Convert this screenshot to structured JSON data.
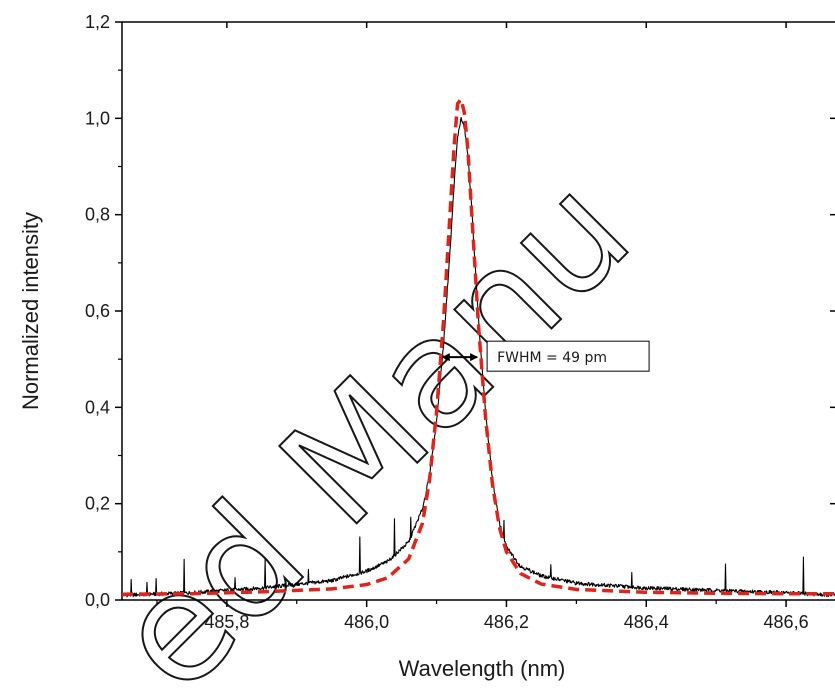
{
  "chart_data": {
    "type": "line",
    "title": "",
    "xlabel": "Wavelength (nm)",
    "ylabel": "Normalized intensity",
    "xlim": [
      485.65,
      486.67
    ],
    "ylim": [
      0.0,
      1.2
    ],
    "x_ticks": [
      485.8,
      486.0,
      486.2,
      486.4,
      486.6
    ],
    "x_tick_labels": [
      "485,8",
      "486,0",
      "486,2",
      "486,4",
      "486,6"
    ],
    "y_ticks": [
      0.0,
      0.2,
      0.4,
      0.6,
      0.8,
      1.0,
      1.2
    ],
    "y_tick_labels": [
      "0,0",
      "0,2",
      "0,4",
      "0,6",
      "0,8",
      "1,0",
      "1,2"
    ],
    "grid": false,
    "series": [
      {
        "style": "solid",
        "color": "#000000",
        "peak_center": 486.133,
        "peak_height": 1.0,
        "x": [
          485.65,
          485.75,
          485.85,
          485.95,
          486.0,
          486.03,
          486.06,
          486.08,
          486.09,
          486.1,
          486.11,
          486.12,
          486.125,
          486.13,
          486.135,
          486.14,
          486.145,
          486.15,
          486.16,
          486.17,
          486.18,
          486.19,
          486.2,
          486.22,
          486.25,
          486.3,
          486.4,
          486.5,
          486.6,
          486.67
        ],
        "y": [
          0.01,
          0.015,
          0.025,
          0.04,
          0.06,
          0.08,
          0.12,
          0.19,
          0.26,
          0.37,
          0.53,
          0.74,
          0.86,
          0.96,
          1.0,
          0.98,
          0.92,
          0.82,
          0.58,
          0.39,
          0.25,
          0.16,
          0.11,
          0.07,
          0.05,
          0.035,
          0.025,
          0.02,
          0.015,
          0.01
        ]
      },
      {
        "style": "dashed",
        "color": "#e0241b",
        "peak_center": 486.133,
        "peak_height": 1.04,
        "x": [
          485.65,
          485.75,
          485.85,
          485.95,
          486.0,
          486.03,
          486.06,
          486.08,
          486.09,
          486.1,
          486.11,
          486.12,
          486.125,
          486.13,
          486.135,
          486.14,
          486.145,
          486.15,
          486.16,
          486.17,
          486.18,
          486.19,
          486.2,
          486.22,
          486.25,
          486.3,
          486.4,
          486.5,
          486.6,
          486.67
        ],
        "y": [
          0.012,
          0.013,
          0.017,
          0.023,
          0.032,
          0.046,
          0.085,
          0.16,
          0.25,
          0.39,
          0.58,
          0.82,
          0.94,
          1.03,
          1.04,
          1.01,
          0.93,
          0.81,
          0.57,
          0.38,
          0.24,
          0.15,
          0.1,
          0.055,
          0.033,
          0.022,
          0.016,
          0.014,
          0.013,
          0.013
        ]
      }
    ],
    "annotations": [
      {
        "text": "FWHM = 49 pm",
        "arrow_from_x": 486.109,
        "arrow_to_x": 486.158,
        "y": 0.5
      }
    ]
  },
  "watermark": {
    "text": "Accepted Manuscript"
  }
}
